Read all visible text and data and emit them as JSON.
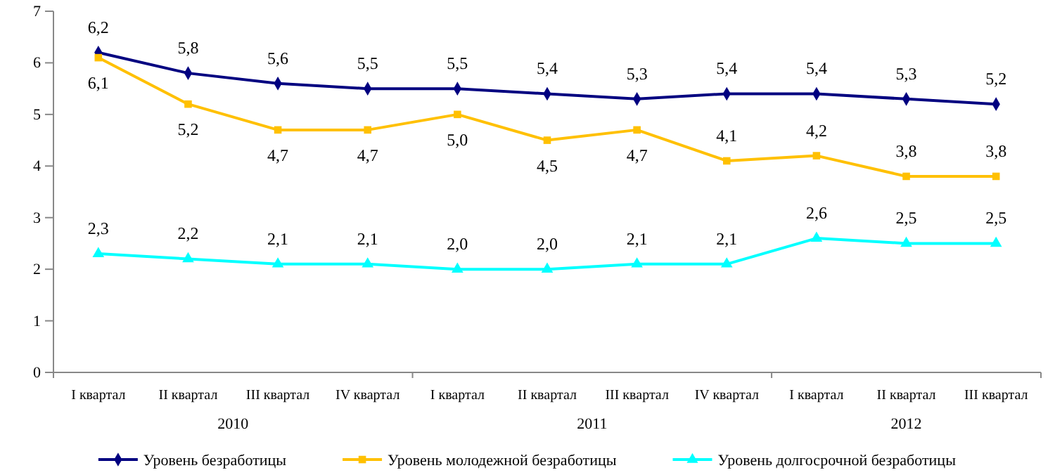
{
  "chart_data": {
    "type": "line",
    "categories": [
      "I квартал",
      "II квартал",
      "III квартал",
      "IV квартал",
      "I квартал",
      "II квартал",
      "III квартал",
      "IV квартал",
      "I квартал",
      "II квартал",
      "III квартал"
    ],
    "annotations": [
      "2010",
      "2011",
      "2012"
    ],
    "ylim": [
      0,
      7
    ],
    "yticks": [
      0,
      1,
      2,
      3,
      4,
      5,
      6,
      7
    ],
    "grid": false,
    "legend": "bottom",
    "line_style": "solid",
    "series": [
      {
        "name": "Уровень безработицы",
        "color": "#000080",
        "marker": "diamond",
        "values": [
          6.2,
          5.8,
          5.6,
          5.5,
          5.5,
          5.4,
          5.3,
          5.4,
          5.4,
          5.3,
          5.2
        ],
        "value_labels": [
          "6,2",
          "5,8",
          "5,6",
          "5,5",
          "5,5",
          "5,4",
          "5,3",
          "5,4",
          "5,4",
          "5,3",
          "5,2"
        ]
      },
      {
        "name": "Уровень молодежной безработицы",
        "color": "#ffc000",
        "marker": "square",
        "values": [
          6.1,
          5.2,
          4.7,
          4.7,
          5.0,
          4.5,
          4.7,
          4.1,
          4.2,
          3.8,
          3.8
        ],
        "value_labels": [
          "6,1",
          "5,2",
          "4,7",
          "4,7",
          "5,0",
          "4,5",
          "4,7",
          "4,1",
          "4,2",
          "3,8",
          "3,8"
        ]
      },
      {
        "name": "Уровень долгосрочной безработицы",
        "color": "#00ffff",
        "marker": "triangle",
        "values": [
          2.3,
          2.2,
          2.1,
          2.1,
          2.0,
          2.0,
          2.1,
          2.1,
          2.6,
          2.5,
          2.5
        ],
        "value_labels": [
          "2,3",
          "2,2",
          "2,1",
          "2,1",
          "2,0",
          "2,0",
          "2,1",
          "2,1",
          "2,6",
          "2,5",
          "2,5"
        ]
      }
    ]
  }
}
